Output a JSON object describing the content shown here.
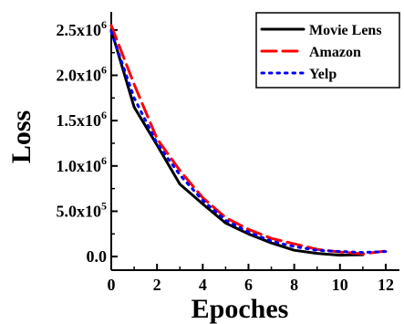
{
  "chart_data": {
    "type": "line",
    "xlabel": "Epoches",
    "ylabel": "Loss",
    "xlim": [
      0,
      12.6
    ],
    "ylim": [
      -150000,
      2700000
    ],
    "x_ticks": [
      0,
      2,
      4,
      6,
      8,
      10,
      12
    ],
    "x_tick_labels": [
      "0",
      "2",
      "4",
      "6",
      "8",
      "10",
      "12"
    ],
    "y_ticks": [
      0,
      500000,
      1000000,
      1500000,
      2000000,
      2500000
    ],
    "y_tick_labels": [
      {
        "mantissa": "0.0",
        "exp": ""
      },
      {
        "mantissa": "5.0x10",
        "exp": "5"
      },
      {
        "mantissa": "1.0x10",
        "exp": "6"
      },
      {
        "mantissa": "1.5x10",
        "exp": "6"
      },
      {
        "mantissa": "2.0x10",
        "exp": "6"
      },
      {
        "mantissa": "2.5x10",
        "exp": "6"
      }
    ],
    "legend_position": "top-right",
    "series": [
      {
        "name": "Movie Lens",
        "color": "#000000",
        "style": "solid",
        "x": [
          0,
          1,
          2,
          3,
          4,
          5,
          6,
          7,
          8,
          9,
          10,
          11
        ],
        "y": [
          2500000,
          1650000,
          1230000,
          800000,
          580000,
          370000,
          250000,
          150000,
          70000,
          35000,
          15000,
          20000
        ]
      },
      {
        "name": "Amazon",
        "color": "#ff0000",
        "style": "dashed",
        "x": [
          0,
          1,
          2,
          3,
          4,
          5,
          6,
          7,
          8,
          9,
          10,
          11,
          12
        ],
        "y": [
          2550000,
          1900000,
          1300000,
          950000,
          650000,
          430000,
          300000,
          200000,
          140000,
          80000,
          50000,
          30000,
          60000
        ]
      },
      {
        "name": "Yelp",
        "color": "#0000ff",
        "style": "dotted",
        "x": [
          0,
          1,
          2,
          3,
          4,
          5,
          6,
          7,
          8,
          9,
          10,
          11,
          12
        ],
        "y": [
          2480000,
          1750000,
          1250000,
          900000,
          620000,
          400000,
          270000,
          170000,
          110000,
          70000,
          55000,
          45000,
          55000
        ]
      }
    ]
  }
}
